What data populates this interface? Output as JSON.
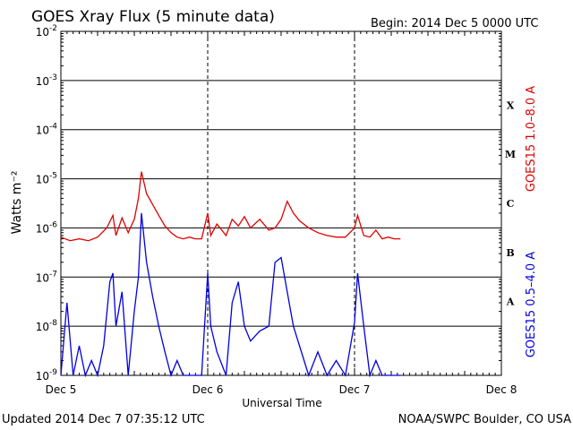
{
  "header": {
    "title": "GOES Xray Flux (5 minute data)",
    "begin": "Begin:  2014 Dec 5 0000 UTC"
  },
  "footer": {
    "updated": "Updated 2014 Dec  7 07:35:12 UTC",
    "credit": "NOAA/SWPC Boulder, CO USA"
  },
  "chart_data": {
    "type": "line",
    "title": "GOES Xray Flux (5 minute data)",
    "xlabel": "Universal Time",
    "ylabel": "Watts m⁻²",
    "yscale": "log",
    "ylim": [
      1e-09,
      0.01
    ],
    "xlim": [
      "2014-12-05 00:00",
      "2014-12-08 00:00"
    ],
    "x_tick_labels": [
      "Dec 5",
      "Dec 6",
      "Dec 7",
      "Dec 8"
    ],
    "y_tick_labels": [
      {
        "base": "10",
        "exp": "-9"
      },
      {
        "base": "10",
        "exp": "-8"
      },
      {
        "base": "10",
        "exp": "-7"
      },
      {
        "base": "10",
        "exp": "-6"
      },
      {
        "base": "10",
        "exp": "-5"
      },
      {
        "base": "10",
        "exp": "-4"
      },
      {
        "base": "10",
        "exp": "-3"
      },
      {
        "base": "10",
        "exp": "-2"
      }
    ],
    "flare_classes": [
      {
        "label": "A",
        "value": 1e-08
      },
      {
        "label": "B",
        "value": 1e-07
      },
      {
        "label": "C",
        "value": 1e-06
      },
      {
        "label": "M",
        "value": 1e-05
      },
      {
        "label": "X",
        "value": 0.0001
      }
    ],
    "grid": true,
    "series": [
      {
        "name": "GOES15 1.0–8.0 A",
        "color": "#e00000",
        "x": [
          "2014-12-05 00:00",
          "2014-12-05 01:30",
          "2014-12-05 03:00",
          "2014-12-05 04:30",
          "2014-12-05 06:00",
          "2014-12-05 07:30",
          "2014-12-05 08:30",
          "2014-12-05 09:00",
          "2014-12-05 10:00",
          "2014-12-05 11:00",
          "2014-12-05 12:00",
          "2014-12-05 12:40",
          "2014-12-05 13:10",
          "2014-12-05 14:00",
          "2014-12-05 15:00",
          "2014-12-05 16:00",
          "2014-12-05 17:00",
          "2014-12-05 18:00",
          "2014-12-05 19:00",
          "2014-12-05 20:00",
          "2014-12-05 21:00",
          "2014-12-05 22:00",
          "2014-12-05 23:00",
          "2014-12-06 00:00",
          "2014-12-06 00:30",
          "2014-12-06 01:30",
          "2014-12-06 03:00",
          "2014-12-06 04:00",
          "2014-12-06 05:00",
          "2014-12-06 06:00",
          "2014-12-06 07:00",
          "2014-12-06 08:30",
          "2014-12-06 10:00",
          "2014-12-06 11:00",
          "2014-12-06 12:00",
          "2014-12-06 13:00",
          "2014-12-06 14:00",
          "2014-12-06 15:00",
          "2014-12-06 16:30",
          "2014-12-06 18:00",
          "2014-12-06 19:30",
          "2014-12-06 21:00",
          "2014-12-06 22:30",
          "2014-12-07 00:00",
          "2014-12-07 00:30",
          "2014-12-07 01:30",
          "2014-12-07 02:30",
          "2014-12-07 03:30",
          "2014-12-07 04:30",
          "2014-12-07 05:30",
          "2014-12-07 06:30",
          "2014-12-07 07:30"
        ],
        "y": [
          6.5e-07,
          5.5e-07,
          6e-07,
          5.5e-07,
          6.5e-07,
          1e-06,
          1.8e-06,
          7e-07,
          1.6e-06,
          8e-07,
          1.5e-06,
          4e-06,
          1.4e-05,
          5e-06,
          3e-06,
          1.8e-06,
          1.1e-06,
          8e-07,
          6.5e-07,
          6e-07,
          6.5e-07,
          6e-07,
          6e-07,
          2e-06,
          7e-07,
          1.2e-06,
          7e-07,
          1.5e-06,
          1.1e-06,
          1.7e-06,
          1e-06,
          1.5e-06,
          9e-07,
          1e-06,
          1.5e-06,
          3.5e-06,
          2e-06,
          1.4e-06,
          1e-06,
          8e-07,
          7e-07,
          6.5e-07,
          6.5e-07,
          1e-06,
          1.8e-06,
          7e-07,
          6.5e-07,
          9e-07,
          6e-07,
          6.5e-07,
          6e-07,
          6e-07
        ]
      },
      {
        "name": "GOES15 0.5–4.0 A",
        "color": "#0000e0",
        "x": [
          "2014-12-05 00:00",
          "2014-12-05 01:00",
          "2014-12-05 02:00",
          "2014-12-05 03:00",
          "2014-12-05 04:00",
          "2014-12-05 05:00",
          "2014-12-05 06:00",
          "2014-12-05 07:00",
          "2014-12-05 08:00",
          "2014-12-05 08:30",
          "2014-12-05 09:00",
          "2014-12-05 10:00",
          "2014-12-05 11:00",
          "2014-12-05 12:00",
          "2014-12-05 12:40",
          "2014-12-05 13:10",
          "2014-12-05 14:00",
          "2014-12-05 15:00",
          "2014-12-05 16:00",
          "2014-12-05 17:00",
          "2014-12-05 18:00",
          "2014-12-05 19:00",
          "2014-12-05 20:00",
          "2014-12-05 21:00",
          "2014-12-05 22:00",
          "2014-12-05 23:00",
          "2014-12-06 00:00",
          "2014-12-06 00:30",
          "2014-12-06 01:30",
          "2014-12-06 03:00",
          "2014-12-06 04:00",
          "2014-12-06 05:00",
          "2014-12-06 06:00",
          "2014-12-06 07:00",
          "2014-12-06 08:30",
          "2014-12-06 10:00",
          "2014-12-06 11:00",
          "2014-12-06 12:00",
          "2014-12-06 13:00",
          "2014-12-06 14:00",
          "2014-12-06 15:00",
          "2014-12-06 16:30",
          "2014-12-06 18:00",
          "2014-12-06 19:30",
          "2014-12-06 21:00",
          "2014-12-06 22:30",
          "2014-12-07 00:00",
          "2014-12-07 00:30",
          "2014-12-07 01:30",
          "2014-12-07 02:30",
          "2014-12-07 03:30",
          "2014-12-07 04:30",
          "2014-12-07 05:30",
          "2014-12-07 06:30",
          "2014-12-07 07:30"
        ],
        "y": [
          1e-09,
          3e-08,
          1e-09,
          4e-09,
          1e-09,
          2e-09,
          1e-09,
          4e-09,
          8e-08,
          1.2e-07,
          1e-08,
          5e-08,
          1e-09,
          2e-08,
          1e-07,
          2e-06,
          2e-07,
          4e-08,
          1e-08,
          3e-09,
          1e-09,
          2e-09,
          1e-09,
          1e-09,
          1e-09,
          1e-09,
          1.2e-07,
          1e-08,
          3e-09,
          1e-09,
          3e-08,
          8e-08,
          1e-08,
          5e-09,
          8e-09,
          1e-08,
          2e-07,
          2.5e-07,
          5e-08,
          1e-08,
          4e-09,
          1e-09,
          3e-09,
          1e-09,
          2e-09,
          1e-09,
          1.2e-08,
          1.2e-07,
          1e-08,
          1e-09,
          2e-09,
          1e-09,
          1e-09,
          1e-09,
          1e-09
        ]
      }
    ]
  }
}
